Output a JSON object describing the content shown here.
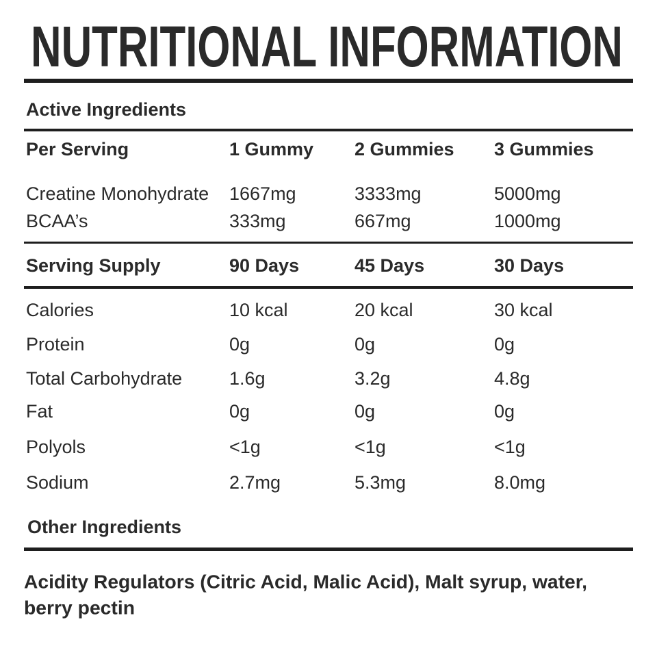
{
  "title": "NUTRITIONAL INFORMATION",
  "active_ingredients": {
    "heading": "Active Ingredients",
    "header": [
      "Per Serving",
      "1 Gummy",
      "2 Gummies",
      "3 Gummies"
    ],
    "rows": [
      [
        "Creatine Monohydrate",
        "1667mg",
        "3333mg",
        "5000mg"
      ],
      [
        "BCAA’s",
        "333mg",
        "667mg",
        "1000mg"
      ]
    ]
  },
  "serving_supply": [
    "Serving Supply",
    "90 Days",
    "45 Days",
    "30 Days"
  ],
  "nutrition_rows": [
    [
      "Calories",
      "10 kcal",
      "20 kcal",
      "30 kcal"
    ],
    [
      "Protein",
      "0g",
      "0g",
      "0g"
    ],
    [
      "Total Carbohydrate",
      "1.6g",
      "3.2g",
      "4.8g"
    ],
    [
      "Fat",
      "0g",
      "0g",
      "0g"
    ],
    [
      "Polyols",
      "<1g",
      "<1g",
      "<1g"
    ],
    [
      "Sodium",
      "2.7mg",
      "5.3mg",
      "8.0mg"
    ]
  ],
  "other_ingredients": {
    "heading": "Other Ingredients",
    "lines": [
      "Acidity Regulators (Citric Acid, Malic Acid), Malt syrup, water,",
      "berry pectin"
    ]
  }
}
